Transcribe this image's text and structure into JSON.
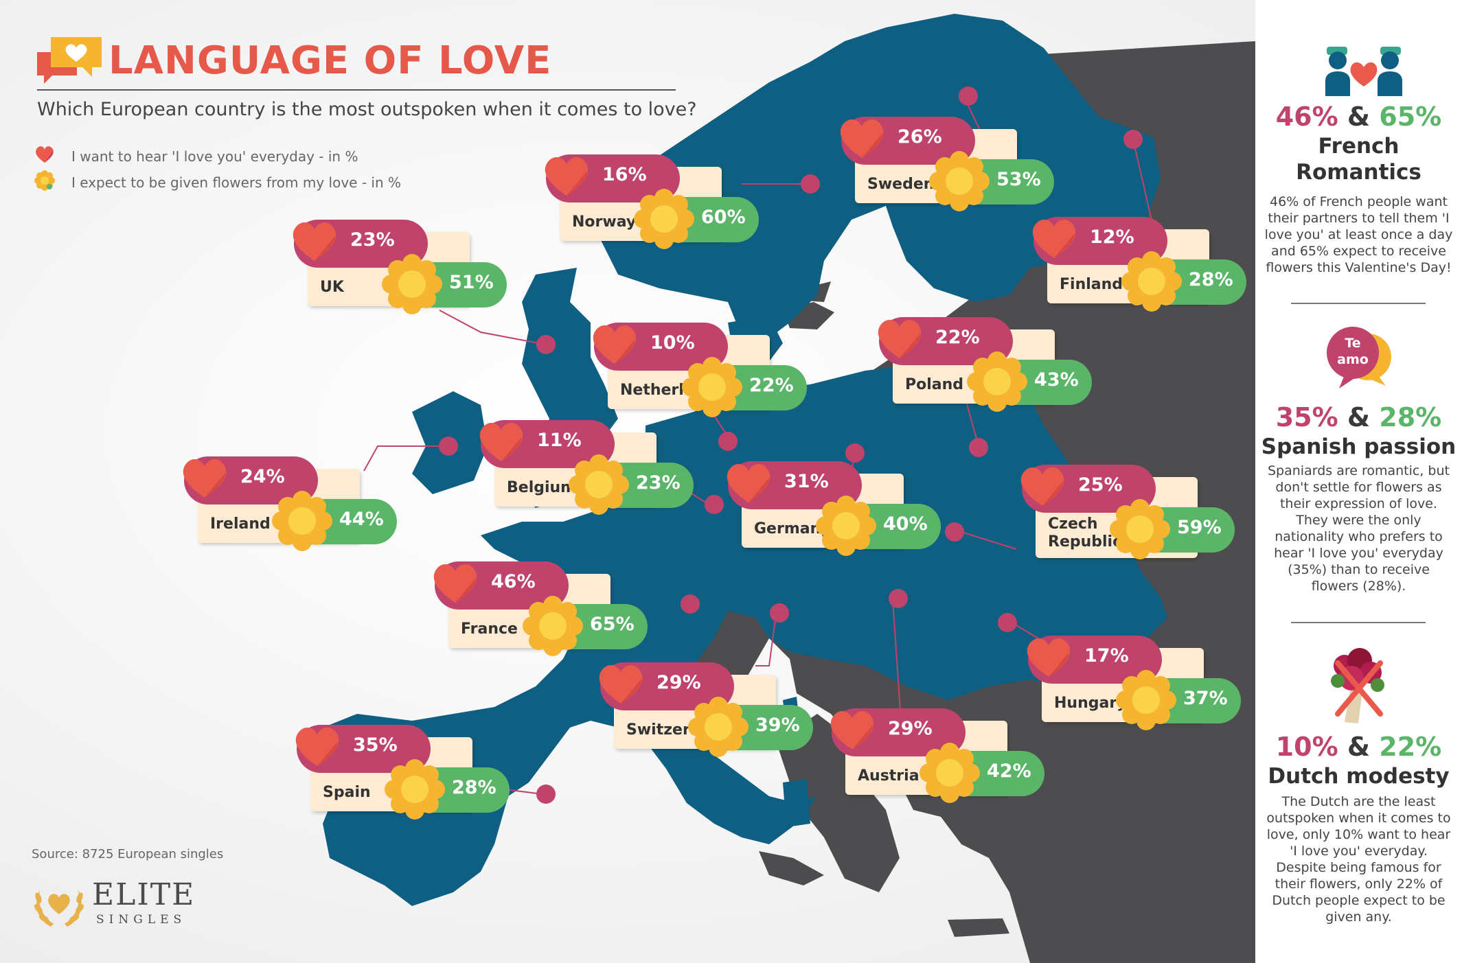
{
  "header": {
    "title": "LANGUAGE OF LOVE",
    "subtitle": "Which European country is the most outspoken when it comes to love?"
  },
  "legend": [
    {
      "icon": "heart-icon",
      "label": "I want to hear 'I love you' everyday - in %"
    },
    {
      "icon": "flower-icon",
      "label": "I expect to be given flowers from my love - in %"
    }
  ],
  "colors": {
    "love": "#c0436c",
    "flowers": "#5bb569",
    "heart": "#ea5a4c",
    "flower_petal": "#f6b531",
    "flower_center": "#fbd349",
    "card_bg": "#fdebd3",
    "map_land": "#0f5f82",
    "map_other": "#4d4d4f",
    "marker": "#c0436c"
  },
  "countries": [
    {
      "name": "Norway",
      "love": "16%",
      "flowers": "60%"
    },
    {
      "name": "Sweden",
      "love": "26%",
      "flowers": "53%"
    },
    {
      "name": "UK",
      "love": "23%",
      "flowers": "51%"
    },
    {
      "name": "Finland",
      "love": "12%",
      "flowers": "28%"
    },
    {
      "name": "Netherlands",
      "love": "10%",
      "flowers": "22%"
    },
    {
      "name": "Poland",
      "love": "22%",
      "flowers": "43%"
    },
    {
      "name": "Ireland",
      "love": "24%",
      "flowers": "44%"
    },
    {
      "name": "Belgium",
      "love": "11%",
      "flowers": "23%"
    },
    {
      "name": "Germany",
      "love": "31%",
      "flowers": "40%"
    },
    {
      "name": "Czech Republic",
      "love": "25%",
      "flowers": "59%"
    },
    {
      "name": "France",
      "love": "46%",
      "flowers": "65%"
    },
    {
      "name": "Switzerland",
      "love": "29%",
      "flowers": "39%"
    },
    {
      "name": "Hungary",
      "love": "17%",
      "flowers": "37%"
    },
    {
      "name": "Austria",
      "love": "29%",
      "flowers": "42%"
    },
    {
      "name": "Spain",
      "love": "35%",
      "flowers": "28%"
    }
  ],
  "footer": {
    "source": "Source: 8725 European singles",
    "logo_word": "ELITE",
    "logo_sub": "SINGLES"
  },
  "sidebar": {
    "sections": [
      {
        "icon": "couple-heart-icon",
        "stat_love": "46%",
        "amp": "&",
        "stat_flowers": "65%",
        "title": "French Romantics",
        "text": "46% of French people want their partners to tell them 'I love you' at least once a day and 65% expect to receive flowers this Valentine's Day!"
      },
      {
        "icon": "speech-bubble-icon",
        "bubble_text": "Te amo",
        "stat_love": "35%",
        "amp": "&",
        "stat_flowers": "28%",
        "title": "Spanish passion",
        "text": "Spaniards are romantic, but don't settle for flowers as their expression of love. They were the only nationality who prefers to hear 'I love you' everyday (35%) than to receive flowers (28%)."
      },
      {
        "icon": "crossed-flowers-icon",
        "stat_love": "10%",
        "amp": "&",
        "stat_flowers": "22%",
        "title": "Dutch modesty",
        "text": "The Dutch are the least outspoken when it comes to love, only 10% want to hear 'I love you' everyday. Despite being famous for their flowers, only 22% of Dutch people expect to be given any."
      }
    ]
  }
}
